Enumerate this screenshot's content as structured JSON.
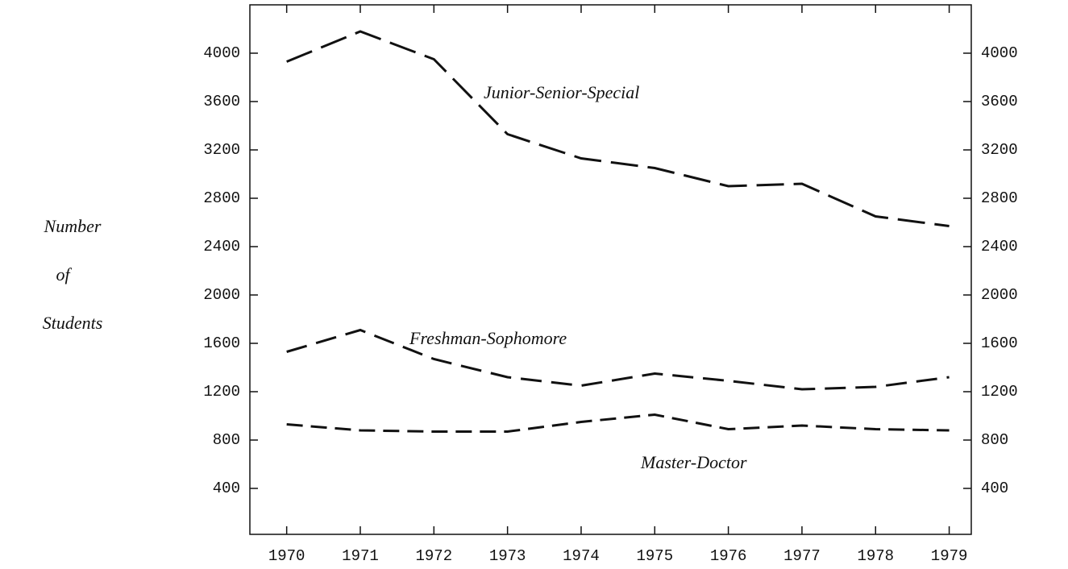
{
  "chart_data": {
    "type": "line",
    "ylabel": [
      "Number",
      "of",
      "Students"
    ],
    "x": [
      1970,
      1971,
      1972,
      1973,
      1974,
      1975,
      1976,
      1977,
      1978,
      1979
    ],
    "xlim": [
      1969.5,
      1979.3
    ],
    "xticks": [
      1970,
      1971,
      1972,
      1973,
      1974,
      1975,
      1976,
      1977,
      1978,
      1979
    ],
    "ylim": [
      0,
      4400
    ],
    "yticks": [
      400,
      800,
      1200,
      1600,
      2000,
      2400,
      2800,
      3200,
      3600,
      4000
    ],
    "right_axis_ticks": true,
    "grid": false,
    "series": [
      {
        "name": "Junior-Senior-Special",
        "color": "#111111",
        "values": [
          3930,
          4180,
          3950,
          3330,
          3130,
          3050,
          2900,
          2920,
          2650,
          2570
        ]
      },
      {
        "name": "Freshman-Sophomore",
        "color": "#111111",
        "values": [
          1530,
          1710,
          1470,
          1320,
          1250,
          1350,
          1290,
          1220,
          1240,
          1320
        ]
      },
      {
        "name": "Master-Doctor",
        "color": "#111111",
        "values": [
          930,
          880,
          870,
          870,
          950,
          1010,
          890,
          920,
          890,
          880
        ]
      }
    ]
  }
}
